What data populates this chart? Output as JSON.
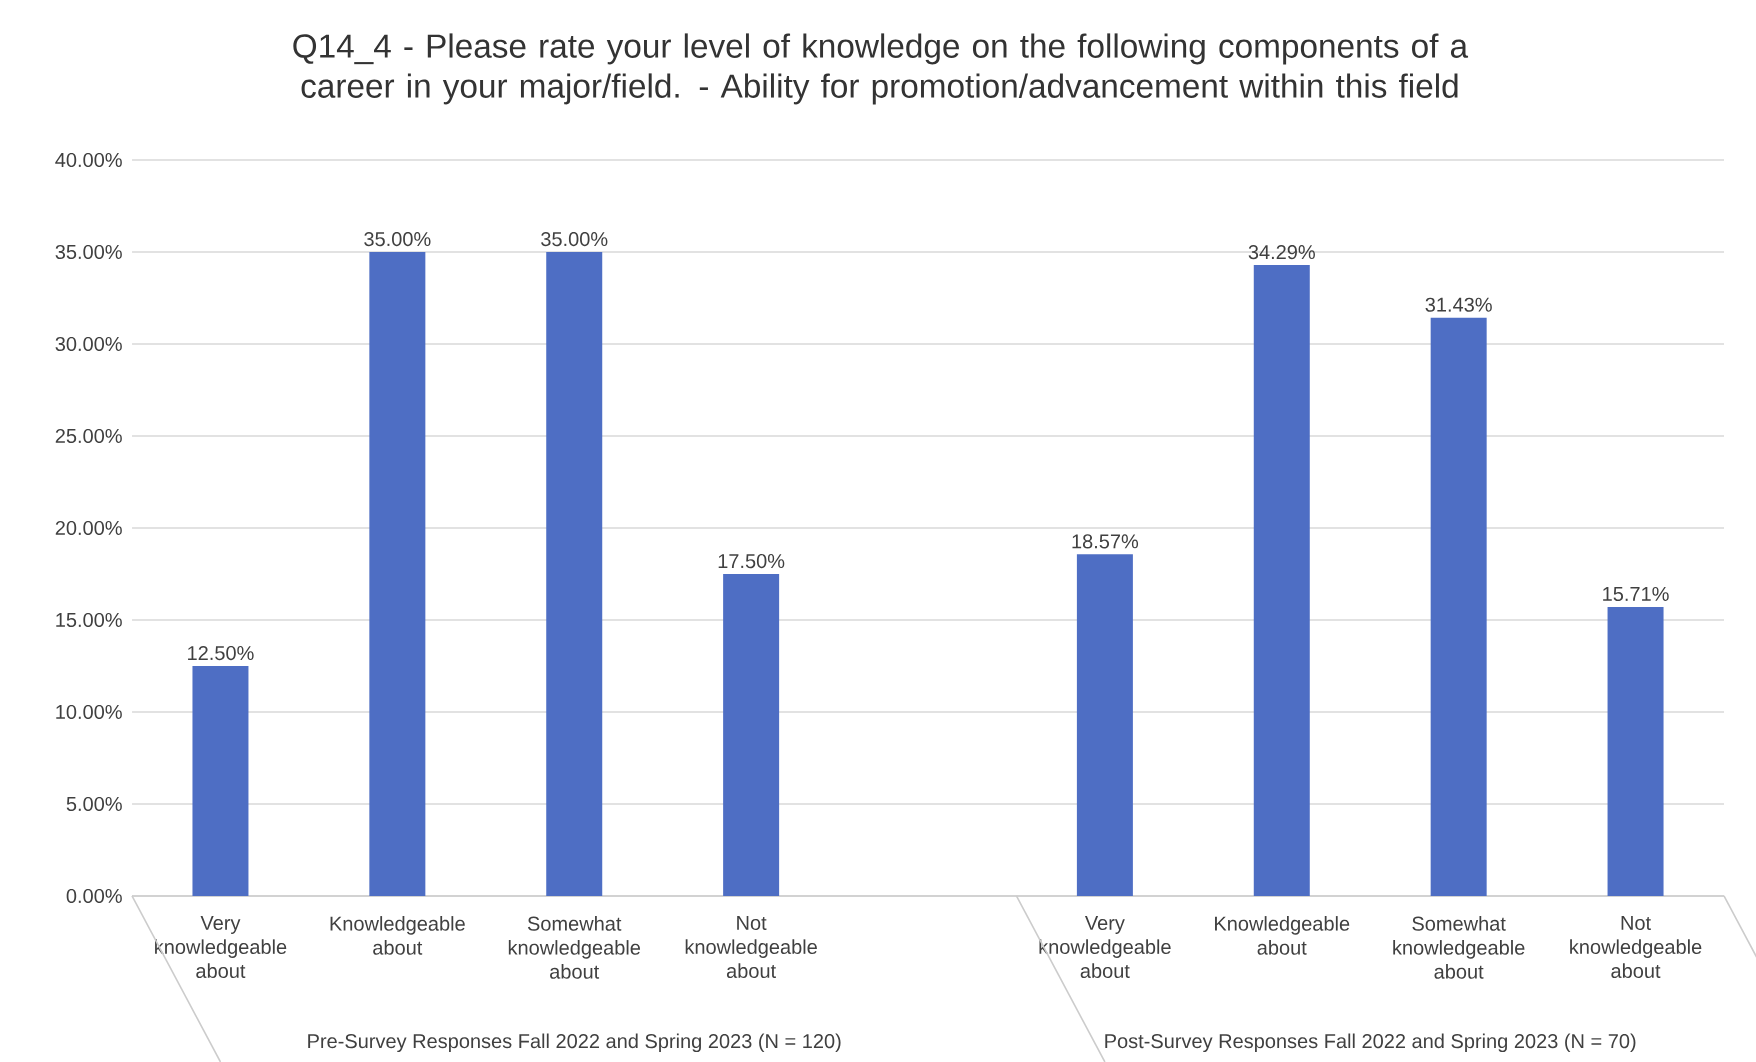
{
  "chart_data": {
    "type": "bar",
    "title": "Q14_4 - Please rate your level of knowledge on the following components of a career in your major/field. - Ability for promotion/advancement within this field",
    "categories": [
      "Very knowledgeable about",
      "Knowledgeable about",
      "Somewhat knowledgeable about",
      "Not knowledgeable about",
      null,
      "Very knowledgeable about",
      "Knowledgeable about",
      "Somewhat knowledgeable about",
      "Not knowledgeable about"
    ],
    "values": [
      12.5,
      35.0,
      35.0,
      17.5,
      null,
      18.57,
      34.29,
      31.43,
      15.71
    ],
    "value_labels": [
      "12.50%",
      "35.00%",
      "35.00%",
      "17.50%",
      null,
      "18.57%",
      "34.29%",
      "31.43%",
      "15.71%"
    ],
    "color": "#4e6ec4",
    "ylim": [
      0,
      40
    ],
    "yticks": [
      {
        "value": 0,
        "label": "0.00%"
      },
      {
        "value": 5,
        "label": "5.00%"
      },
      {
        "value": 10,
        "label": "10.00%"
      },
      {
        "value": 15,
        "label": "15.00%"
      },
      {
        "value": 20,
        "label": "20.00%"
      },
      {
        "value": 25,
        "label": "25.00%"
      },
      {
        "value": 30,
        "label": "30.00%"
      },
      {
        "value": 35,
        "label": "35.00%"
      },
      {
        "value": 40,
        "label": "40.00%"
      }
    ],
    "grid": "y",
    "annotations": [
      "Pre-Survey Responses Fall 2022 and Spring 2023 (N = 120)",
      "Post-Survey Responses Fall 2022 and Spring 2023 (N = 70)"
    ]
  }
}
